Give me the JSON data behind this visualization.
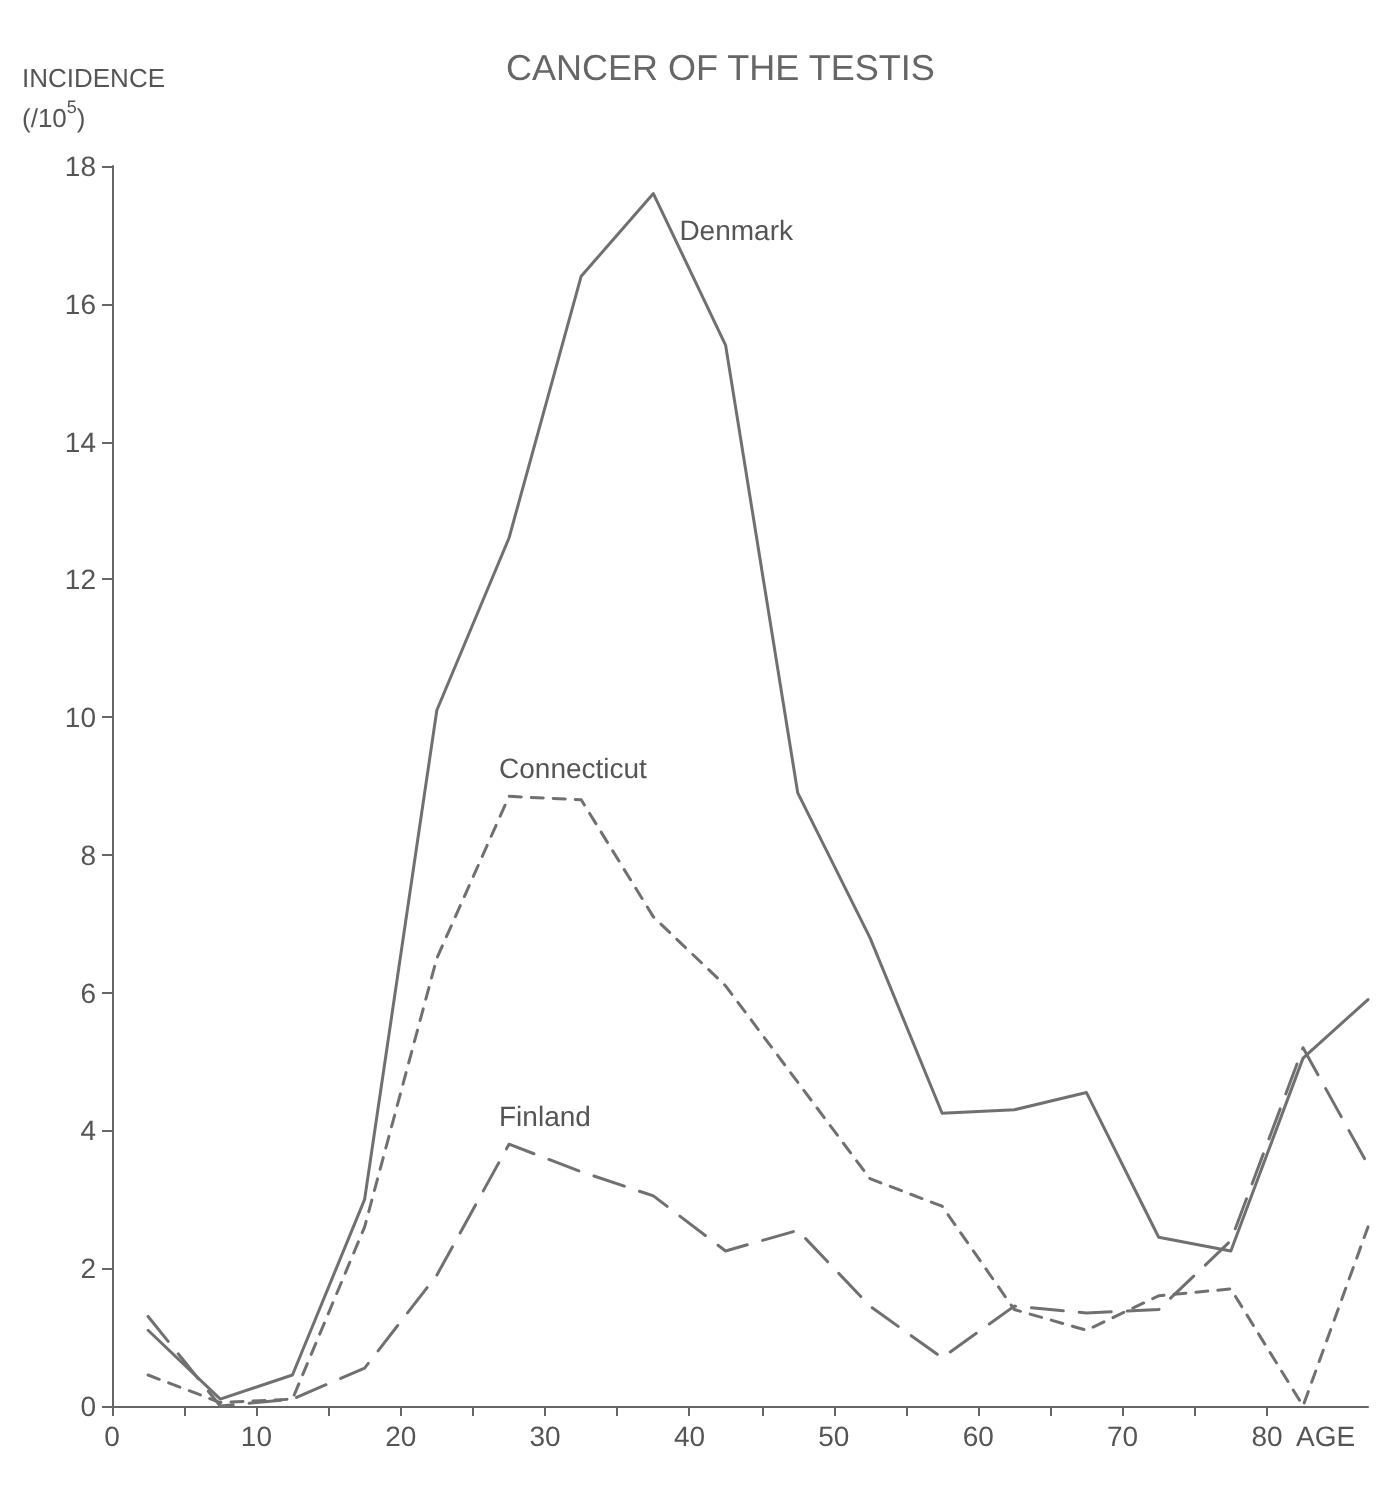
{
  "chart_data": {
    "type": "line",
    "title": "CANCER OF THE TESTIS",
    "xlabel": "AGE",
    "ylabel": "INCIDENCE\n(/10$^{5}$)",
    "x": [
      2.5,
      7.5,
      12.5,
      17.5,
      22.5,
      27.5,
      32.5,
      37.5,
      42.5,
      47.5,
      52.5,
      57.5,
      62.5,
      67.5,
      72.5,
      77.5,
      82.5,
      87
    ],
    "series": [
      {
        "name": "Denmark",
        "color": "#707070",
        "line_style": "solid",
        "values": [
          1.1,
          0.1,
          0.45,
          3.0,
          10.1,
          12.6,
          16.4,
          17.6,
          15.4,
          8.9,
          6.8,
          4.25,
          4.3,
          4.55,
          2.45,
          2.25,
          5.05,
          5.9
        ]
      },
      {
        "name": "Connecticut",
        "color": "#707070",
        "line_style": "dashed",
        "values": [
          0.45,
          0.05,
          0.1,
          2.6,
          6.5,
          8.85,
          8.8,
          7.1,
          6.1,
          4.7,
          3.3,
          2.9,
          1.4,
          1.1,
          1.6,
          1.7,
          0,
          2.6
        ]
      },
      {
        "name": "Finland",
        "color": "#707070",
        "line_style": "dashed",
        "values": [
          1.3,
          0,
          0.1,
          0.55,
          1.9,
          3.8,
          3.4,
          3.05,
          2.25,
          2.55,
          1.45,
          0.7,
          1.45,
          1.35,
          1.4,
          2.4,
          5.2,
          3.5
        ]
      }
    ],
    "xlim": [
      0,
      87
    ],
    "xticks": [
      0,
      {
        "value": 5,
        "label": null
      },
      10,
      {
        "value": 15,
        "label": null
      },
      20,
      {
        "value": 25,
        "label": null
      },
      30,
      {
        "value": 35,
        "label": null
      },
      40,
      {
        "value": 45,
        "label": null
      },
      50,
      {
        "value": 55,
        "label": null
      },
      60,
      {
        "value": 65,
        "label": null
      },
      70,
      {
        "value": 75,
        "label": null
      },
      80
    ],
    "ylim": [
      0,
      18
    ],
    "yticks": [
      0,
      2,
      4,
      6,
      8,
      10,
      12,
      14,
      16,
      18
    ],
    "grid": false,
    "legend": false,
    "marker": "none"
  }
}
